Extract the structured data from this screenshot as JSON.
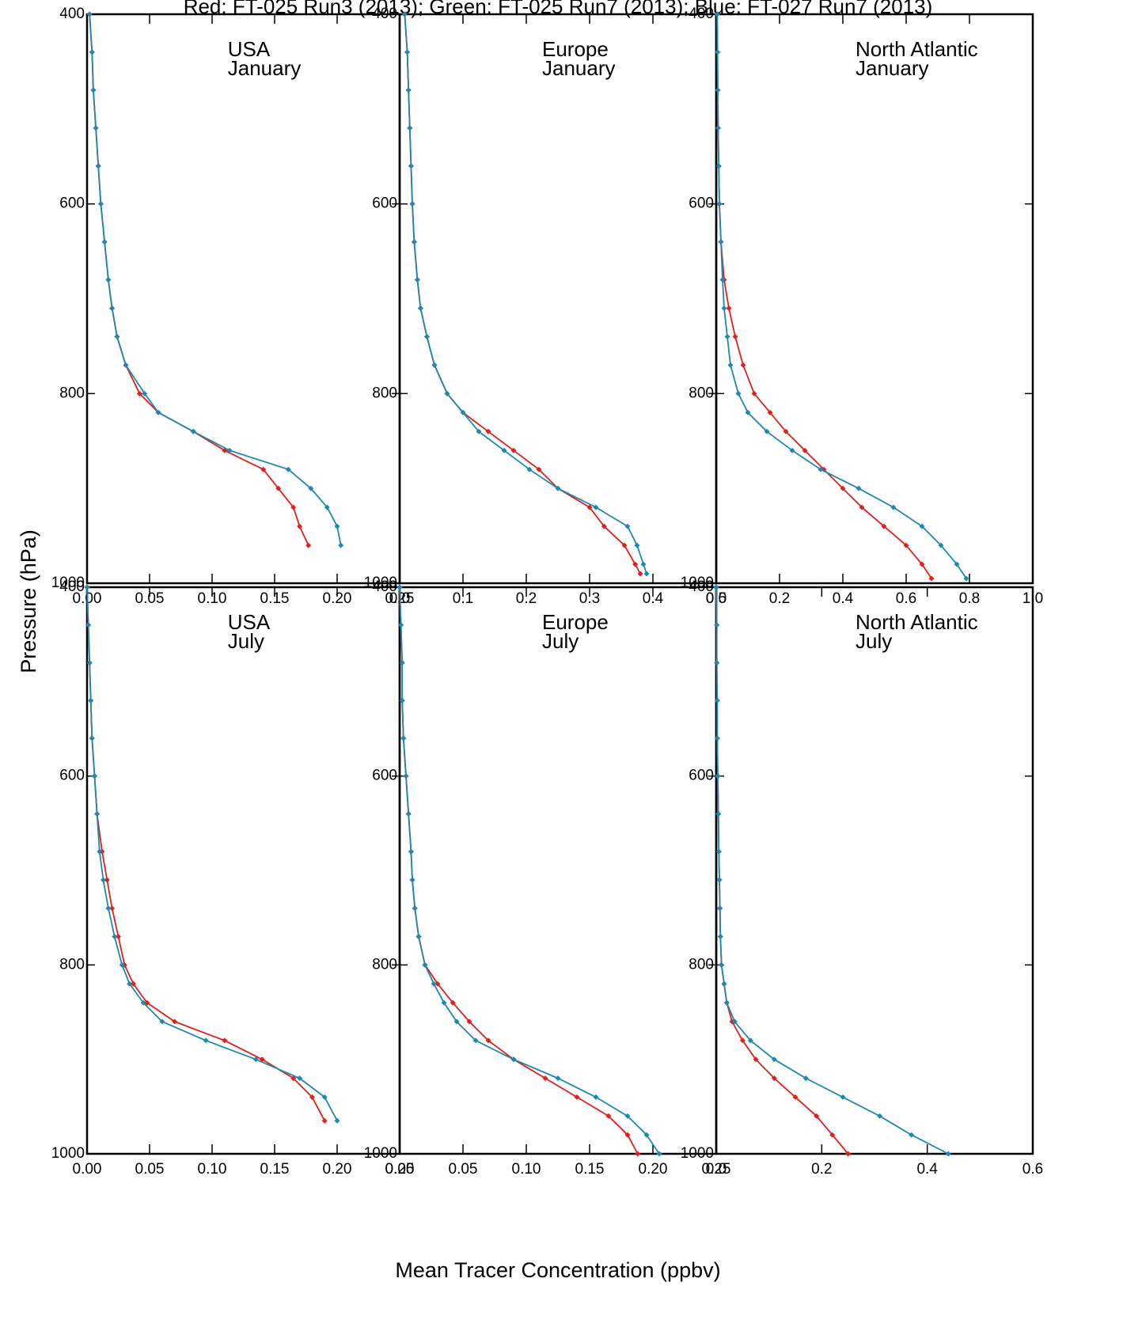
{
  "title": "Red: FT-025 Run3 (2013); Green: FT-025 Run7 (2013); Blue: FT-027 Run7 (2013)",
  "ylabel": "Pressure (hPa)",
  "xlabel": "Mean Tracer Concentration (ppbv)",
  "chart_data": [
    {
      "type": "line",
      "region": "USA",
      "month": "January",
      "y": [
        400,
        440,
        480,
        520,
        560,
        600,
        640,
        680,
        710,
        740,
        770,
        800,
        820,
        840,
        860,
        880,
        900,
        920,
        940,
        960
      ],
      "series": [
        {
          "color": "#e0201e",
          "values": [
            0.002,
            0.004,
            0.005,
            0.007,
            0.009,
            0.011,
            0.014,
            0.017,
            0.02,
            0.024,
            0.031,
            0.042,
            0.057,
            0.085,
            0.11,
            0.141,
            0.153,
            0.165,
            0.17,
            0.177
          ]
        },
        {
          "color": "#1f88b0",
          "values": [
            0.002,
            0.004,
            0.005,
            0.007,
            0.009,
            0.011,
            0.014,
            0.017,
            0.02,
            0.024,
            0.031,
            0.046,
            0.057,
            0.085,
            0.114,
            0.161,
            0.179,
            0.192,
            0.2,
            0.203
          ]
        }
      ],
      "xlim": [
        0,
        0.25
      ],
      "xticks": [
        {
          "value": 0,
          "label": "0.00"
        },
        0.05,
        {
          "value": 0.1,
          "label": "0.10"
        },
        0.15,
        {
          "value": 0.2,
          "label": "0.20"
        },
        0.25
      ],
      "ylim": [
        400,
        1000
      ],
      "yticks": [
        400,
        600,
        800,
        1000
      ],
      "y_inverted": true
    },
    {
      "type": "line",
      "region": "Europe",
      "month": "January",
      "y": [
        400,
        440,
        480,
        520,
        560,
        600,
        640,
        680,
        710,
        740,
        770,
        800,
        820,
        840,
        860,
        880,
        900,
        920,
        940,
        960,
        980,
        990
      ],
      "series": [
        {
          "color": "#e0201e",
          "values": [
            0.008,
            0.012,
            0.014,
            0.016,
            0.018,
            0.02,
            0.023,
            0.028,
            0.033,
            0.043,
            0.055,
            0.075,
            0.1,
            0.14,
            0.18,
            0.22,
            0.25,
            0.3,
            0.323,
            0.355,
            0.372,
            0.38
          ]
        },
        {
          "color": "#1f88b0",
          "values": [
            0.008,
            0.012,
            0.014,
            0.016,
            0.018,
            0.02,
            0.023,
            0.028,
            0.033,
            0.043,
            0.055,
            0.075,
            0.1,
            0.125,
            0.165,
            0.205,
            0.25,
            0.31,
            0.36,
            0.375,
            0.385,
            0.39
          ]
        }
      ],
      "xlim": [
        0,
        0.5
      ],
      "xticks": [
        {
          "value": 0,
          "label": "0.0"
        },
        0.1,
        0.2,
        0.3,
        0.4,
        0.5
      ],
      "ylim": [
        400,
        1000
      ],
      "yticks": [
        400,
        600,
        800,
        1000
      ],
      "y_inverted": true
    },
    {
      "type": "line",
      "region": "North Atlantic",
      "month": "January",
      "y": [
        400,
        440,
        480,
        520,
        560,
        600,
        640,
        680,
        710,
        740,
        770,
        800,
        820,
        840,
        860,
        880,
        900,
        920,
        940,
        960,
        980,
        995
      ],
      "series": [
        {
          "color": "#e0201e",
          "values": [
            0.003,
            0.004,
            0.005,
            0.006,
            0.008,
            0.01,
            0.015,
            0.025,
            0.04,
            0.06,
            0.085,
            0.12,
            0.17,
            0.22,
            0.28,
            0.34,
            0.4,
            0.46,
            0.53,
            0.6,
            0.65,
            0.68
          ]
        },
        {
          "color": "#1f88b0",
          "values": [
            0.003,
            0.004,
            0.005,
            0.006,
            0.008,
            0.01,
            0.015,
            0.02,
            0.025,
            0.035,
            0.045,
            0.07,
            0.1,
            0.16,
            0.24,
            0.33,
            0.45,
            0.56,
            0.65,
            0.71,
            0.76,
            0.79
          ]
        }
      ],
      "xlim": [
        0,
        1
      ],
      "xticks": [
        {
          "value": 0,
          "label": "0.0"
        },
        0.2,
        0.4,
        0.6,
        0.8,
        {
          "value": 1,
          "label": "1.0"
        }
      ],
      "ylim": [
        400,
        1000
      ],
      "yticks": [
        400,
        600,
        800,
        1000
      ],
      "y_inverted": true
    },
    {
      "type": "line",
      "region": "USA",
      "month": "July",
      "y": [
        400,
        440,
        480,
        520,
        560,
        600,
        640,
        680,
        710,
        740,
        770,
        800,
        820,
        840,
        860,
        880,
        900,
        920,
        940,
        965
      ],
      "series": [
        {
          "color": "#e0201e",
          "values": [
            0,
            0.001,
            0.002,
            0.003,
            0.004,
            0.006,
            0.008,
            0.012,
            0.016,
            0.02,
            0.025,
            0.03,
            0.037,
            0.048,
            0.07,
            0.11,
            0.14,
            0.165,
            0.18,
            0.19
          ]
        },
        {
          "color": "#1f88b0",
          "values": [
            0,
            0.001,
            0.002,
            0.003,
            0.004,
            0.006,
            0.008,
            0.01,
            0.013,
            0.017,
            0.022,
            0.028,
            0.034,
            0.045,
            0.06,
            0.095,
            0.135,
            0.17,
            0.19,
            0.2
          ]
        }
      ],
      "xlim": [
        0,
        0.25
      ],
      "xticks": [
        {
          "value": 0,
          "label": "0.00"
        },
        0.05,
        {
          "value": 0.1,
          "label": "0.10"
        },
        0.15,
        {
          "value": 0.2,
          "label": "0.20"
        },
        0.25
      ],
      "ylim": [
        400,
        1000
      ],
      "yticks": [
        400,
        600,
        800,
        1000
      ],
      "y_inverted": true
    },
    {
      "type": "line",
      "region": "Europe",
      "month": "July",
      "y": [
        400,
        440,
        480,
        520,
        560,
        600,
        640,
        680,
        710,
        740,
        770,
        800,
        820,
        840,
        860,
        880,
        900,
        920,
        940,
        960,
        980,
        1000
      ],
      "series": [
        {
          "color": "#e0201e",
          "values": [
            0,
            0.001,
            0.002,
            0.002,
            0.003,
            0.005,
            0.007,
            0.009,
            0.01,
            0.012,
            0.015,
            0.02,
            0.03,
            0.042,
            0.055,
            0.07,
            0.09,
            0.115,
            0.14,
            0.165,
            0.18,
            0.188
          ]
        },
        {
          "color": "#1f88b0",
          "values": [
            0,
            0.001,
            0.002,
            0.002,
            0.003,
            0.005,
            0.007,
            0.009,
            0.01,
            0.012,
            0.015,
            0.02,
            0.027,
            0.035,
            0.045,
            0.06,
            0.09,
            0.125,
            0.155,
            0.18,
            0.195,
            0.205
          ]
        }
      ],
      "xlim": [
        0,
        0.25
      ],
      "xticks": [
        {
          "value": 0,
          "label": "0.00"
        },
        0.05,
        {
          "value": 0.1,
          "label": "0.10"
        },
        0.15,
        {
          "value": 0.2,
          "label": "0.20"
        },
        0.25
      ],
      "ylim": [
        400,
        1000
      ],
      "yticks": [
        400,
        600,
        800,
        1000
      ],
      "y_inverted": true
    },
    {
      "type": "line",
      "region": "North Atlantic",
      "month": "July",
      "y": [
        400,
        440,
        480,
        520,
        560,
        600,
        640,
        680,
        710,
        740,
        770,
        800,
        820,
        840,
        860,
        880,
        900,
        920,
        940,
        960,
        980,
        1000
      ],
      "series": [
        {
          "color": "#e0201e",
          "values": [
            0,
            0.001,
            0.001,
            0.002,
            0.002,
            0.003,
            0.004,
            0.005,
            0.006,
            0.007,
            0.008,
            0.01,
            0.015,
            0.02,
            0.03,
            0.05,
            0.075,
            0.11,
            0.15,
            0.19,
            0.22,
            0.25
          ]
        },
        {
          "color": "#1f88b0",
          "values": [
            0,
            0.001,
            0.001,
            0.002,
            0.002,
            0.003,
            0.004,
            0.005,
            0.006,
            0.007,
            0.008,
            0.01,
            0.015,
            0.02,
            0.035,
            0.065,
            0.11,
            0.17,
            0.24,
            0.31,
            0.37,
            0.44
          ]
        }
      ],
      "xlim": [
        0,
        0.6
      ],
      "xticks": [
        {
          "value": 0,
          "label": "0.0"
        },
        0.2,
        0.4,
        0.6
      ],
      "ylim": [
        400,
        1000
      ],
      "yticks": [
        400,
        600,
        800,
        1000
      ],
      "y_inverted": true
    }
  ]
}
